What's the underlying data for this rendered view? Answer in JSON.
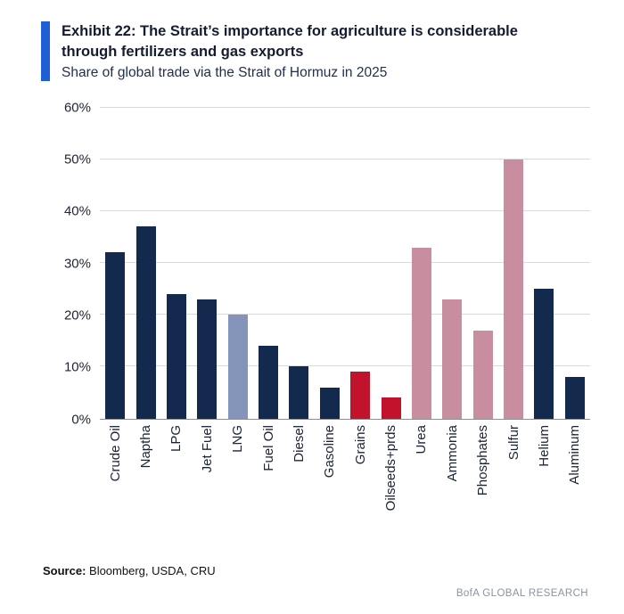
{
  "header": {
    "exhibit_title": "Exhibit 22: The Strait’s importance for agriculture is considerable through fertilizers and gas exports",
    "subtitle": "Share of global trade via the Strait of Hormuz in 2025"
  },
  "chart_data": {
    "type": "bar",
    "title": "Share of global trade via the Strait of Hormuz in 2025",
    "categories": [
      "Crude Oil",
      "Naptha",
      "LPG",
      "Jet Fuel",
      "LNG",
      "Fuel Oil",
      "Diesel",
      "Gasoline",
      "Grains",
      "Oilseeds+prds",
      "Urea",
      "Ammonia",
      "Phosphates",
      "Sulfur",
      "Helium",
      "Aluminum"
    ],
    "values": [
      32,
      37,
      24,
      23,
      20,
      14,
      10,
      6,
      9,
      4,
      33,
      23,
      17,
      50,
      25,
      8
    ],
    "bar_colors": [
      "navy",
      "navy",
      "navy",
      "navy",
      "steel",
      "navy",
      "navy",
      "navy",
      "red",
      "red",
      "mauve",
      "mauve",
      "mauve",
      "mauve",
      "navy",
      "navy"
    ],
    "xlabel": "",
    "ylabel": "",
    "ylim": [
      0,
      60
    ],
    "yticks": [
      {
        "label": "0%",
        "value": 0
      },
      {
        "label": "10%",
        "value": 10
      },
      {
        "label": "20%",
        "value": 20
      },
      {
        "label": "30%",
        "value": 30
      },
      {
        "label": "40%",
        "value": 40
      },
      {
        "label": "50%",
        "value": 50
      },
      {
        "label": "60%",
        "value": 60
      }
    ],
    "grid": true,
    "legend": "none"
  },
  "colors": {
    "navy": "#14294e",
    "steel": "#8494bb",
    "red": "#c1142c",
    "mauve": "#c98da0",
    "accent": "#1f5fd6",
    "grid": "#d9d9d9"
  },
  "footer": {
    "source_label": "Source:",
    "source_text": " Bloomberg, USDA, CRU",
    "brand": "BofA GLOBAL RESEARCH"
  }
}
